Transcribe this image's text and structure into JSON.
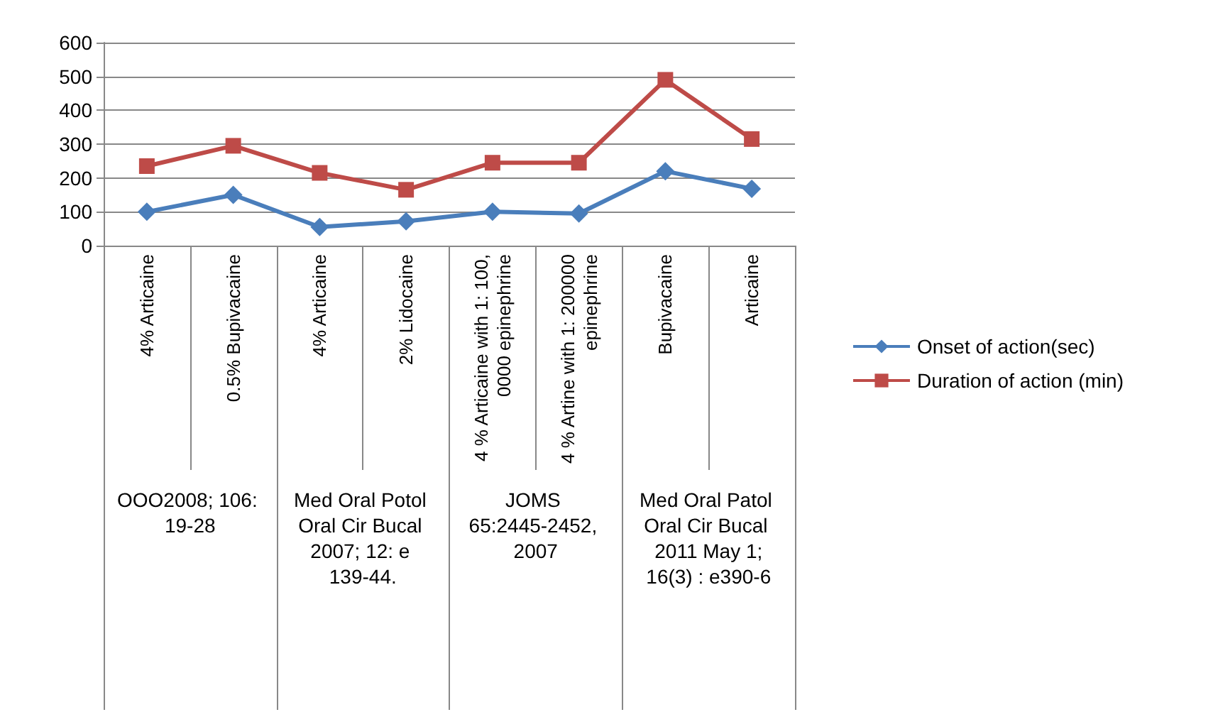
{
  "chart_data": {
    "type": "line",
    "categories": [
      "4% Articaine",
      "0.5% Bupivacaine",
      "4% Articaine",
      "2% Lidocaine",
      "4 % Articaine with 1: 100,0000 epinephrine",
      "4 % Artine with 1: 200000 epinephrine",
      "Bupivacaine",
      "Articaine"
    ],
    "series": [
      {
        "name": "Onset of action(sec)",
        "color": "#4a7ebb",
        "marker": "diamond",
        "values": [
          100,
          150,
          55,
          72,
          100,
          95,
          220,
          168
        ]
      },
      {
        "name": "Duration of action (min)",
        "color": "#be4b48",
        "marker": "square",
        "values": [
          235,
          295,
          215,
          165,
          245,
          245,
          490,
          315
        ]
      }
    ],
    "annotations": [
      "OOO2008; 106: 19-28",
      "Med Oral Potol Oral Cir Bucal 2007; 12: e 139-44.",
      "JOMS 65:2445-2452, 2007",
      "Med Oral Patol Oral Cir Bucal 2011 May 1;16(3) : e390-6"
    ],
    "ylim": [
      0,
      600
    ],
    "yticks": [
      0,
      100,
      200,
      300,
      400,
      500,
      600
    ],
    "grid": "y",
    "legend": "right"
  }
}
